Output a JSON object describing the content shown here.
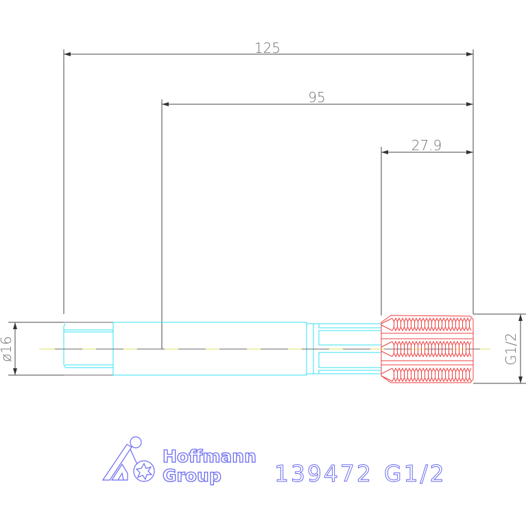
{
  "drawing": {
    "dimensions": {
      "overall_length": "125",
      "length_to_shoulder": "95",
      "thread_length": "27.9",
      "shank_diameter": "ø16",
      "thread_size": "G1/2"
    },
    "part_label": {
      "article_number": "139472",
      "thread": "G1/2"
    },
    "logo": {
      "line1": "Hoffmann",
      "line2": "Group"
    },
    "colors": {
      "dimension": "#555555",
      "body": "#33e0f0",
      "thread": "#f03c3c",
      "centerline": "#e0e060",
      "logo": "#6a6af2"
    }
  }
}
